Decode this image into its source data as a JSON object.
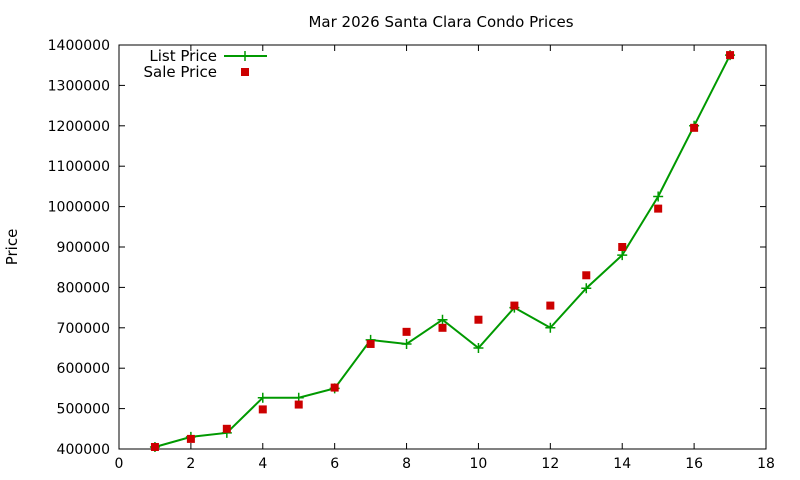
{
  "chart_data": {
    "type": "line",
    "title": "Mar 2026 Santa Clara Condo Prices",
    "xlabel": "",
    "ylabel": "Price",
    "xlim": [
      0,
      18
    ],
    "ylim": [
      400000,
      1400000
    ],
    "x_ticks": [
      0,
      2,
      4,
      6,
      8,
      10,
      12,
      14,
      16,
      18
    ],
    "y_ticks": [
      400000,
      500000,
      600000,
      700000,
      800000,
      900000,
      1000000,
      1100000,
      1200000,
      1300000,
      1400000
    ],
    "grid": false,
    "legend_position": "top-left",
    "series": [
      {
        "name": "List Price",
        "style": "linespoints",
        "color": "#009900",
        "marker": "plus",
        "x": [
          1,
          2,
          3,
          4,
          5,
          6,
          7,
          8,
          9,
          10,
          11,
          12,
          13,
          14,
          15,
          16,
          17
        ],
        "y": [
          405000,
          430000,
          440000,
          527000,
          527000,
          550000,
          670000,
          660000,
          720000,
          650000,
          750000,
          700000,
          798000,
          880000,
          1025000,
          1200000,
          1375000
        ]
      },
      {
        "name": "Sale Price",
        "style": "points",
        "color": "#cc0000",
        "marker": "square",
        "x": [
          1,
          2,
          3,
          4,
          5,
          6,
          7,
          8,
          9,
          10,
          11,
          12,
          13,
          14,
          15,
          16,
          17
        ],
        "y": [
          405000,
          425000,
          450000,
          498000,
          510000,
          552000,
          660000,
          690000,
          700000,
          720000,
          755000,
          755000,
          830000,
          900000,
          995000,
          1195000,
          1375000
        ]
      }
    ]
  }
}
